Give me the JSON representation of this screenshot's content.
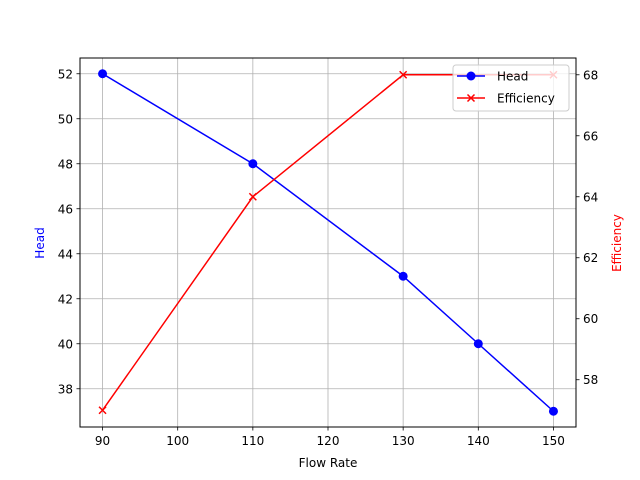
{
  "chart_data": {
    "type": "line",
    "title": "",
    "xlabel": "Flow Rate",
    "ylabel_left": "Head",
    "ylabel_right": "Efficiency",
    "x": [
      90,
      110,
      130,
      140,
      150
    ],
    "x_series": {
      "head": [
        90,
        110,
        130,
        140,
        150
      ],
      "efficiency": [
        90,
        110,
        130,
        150
      ]
    },
    "series": [
      {
        "name": "Head",
        "axis": "left",
        "color": "#0000ff",
        "marker": "circle",
        "x": [
          90,
          110,
          130,
          140,
          150
        ],
        "values": [
          52,
          48,
          43,
          40,
          37
        ]
      },
      {
        "name": "Efficiency",
        "axis": "right",
        "color": "#ff0000",
        "marker": "x",
        "x": [
          90,
          110,
          130,
          150
        ],
        "values": [
          57,
          64,
          68,
          68
        ]
      }
    ],
    "xticks": [
      "90",
      "100",
      "110",
      "120",
      "130",
      "140",
      "150"
    ],
    "yticks_left": [
      "38",
      "40",
      "42",
      "44",
      "46",
      "48",
      "50",
      "52"
    ],
    "yticks_right": [
      "58",
      "60",
      "62",
      "64",
      "66",
      "68"
    ],
    "xlim": [
      87,
      153
    ],
    "ylim_left": [
      36.3,
      52.7
    ],
    "ylim_right": [
      56.45,
      68.55
    ],
    "grid": true,
    "legend": {
      "position": "upper right",
      "entries": [
        "Head",
        "Efficiency"
      ]
    },
    "colors": {
      "head": "#0000ff",
      "efficiency": "#ff0000",
      "grid": "#b0b0b0",
      "axis": "#000000"
    }
  }
}
